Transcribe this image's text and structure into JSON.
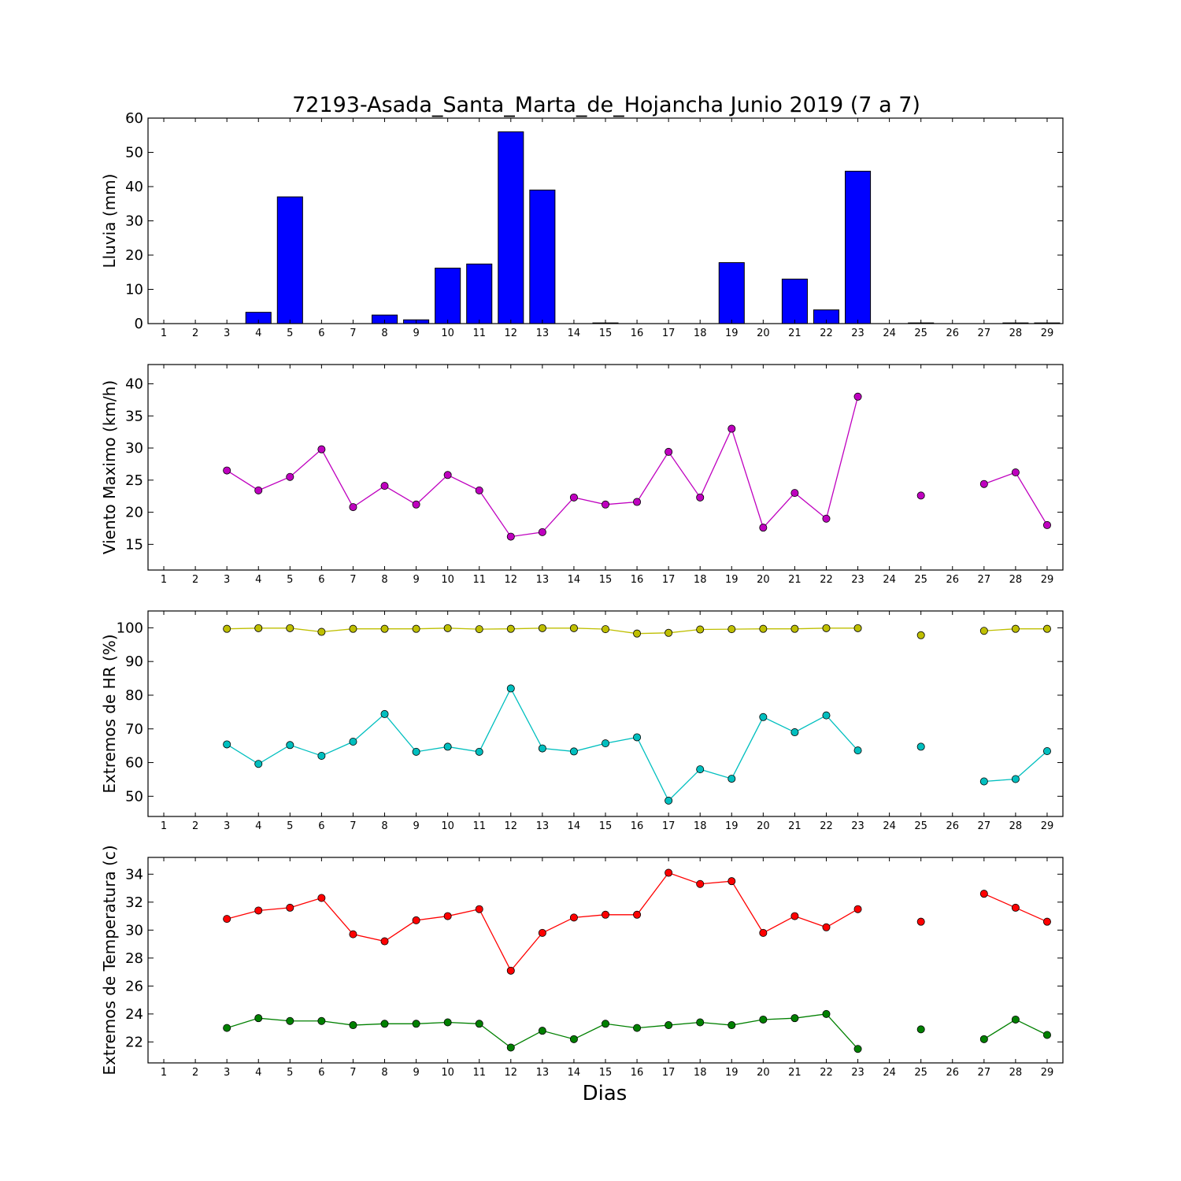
{
  "title": "72193-Asada_Santa_Marta_de_Hojancha Junio 2019  (7 a 7)",
  "xlabel": "Dias",
  "chart_data": [
    {
      "type": "bar",
      "ylabel": "Lluvia (mm)",
      "x": [
        1,
        2,
        3,
        4,
        5,
        6,
        7,
        8,
        9,
        10,
        11,
        12,
        13,
        14,
        15,
        16,
        17,
        18,
        19,
        20,
        21,
        22,
        23,
        24,
        25,
        26,
        27,
        28,
        29
      ],
      "ylim": [
        0,
        60
      ],
      "yticks": [
        0,
        10,
        20,
        30,
        40,
        50,
        60
      ],
      "color": "#0000ff",
      "values": [
        0,
        0,
        0,
        3.3,
        37,
        0,
        0,
        2.5,
        1.1,
        16.2,
        17.4,
        56,
        39,
        0,
        0.2,
        0,
        0,
        0,
        17.8,
        0,
        13,
        4,
        44.5,
        0,
        0.2,
        0,
        0,
        0.2,
        0.2
      ]
    },
    {
      "type": "line",
      "ylabel": "Viento Maximo (km/h)",
      "x": [
        1,
        2,
        3,
        4,
        5,
        6,
        7,
        8,
        9,
        10,
        11,
        12,
        13,
        14,
        15,
        16,
        17,
        18,
        19,
        20,
        21,
        22,
        23,
        24,
        25,
        26,
        27,
        28,
        29
      ],
      "ylim": [
        11,
        43
      ],
      "yticks": [
        15,
        20,
        25,
        30,
        35,
        40
      ],
      "series": [
        {
          "color": "#bf00bf",
          "values": [
            null,
            null,
            26.5,
            23.4,
            25.5,
            29.8,
            20.8,
            24.1,
            21.2,
            25.8,
            23.4,
            16.2,
            16.9,
            22.3,
            21.2,
            21.6,
            29.4,
            22.3,
            33.0,
            17.6,
            23.0,
            19.0,
            38.0,
            null,
            22.6,
            null,
            24.4,
            26.2,
            18.0
          ]
        }
      ]
    },
    {
      "type": "line",
      "ylabel": "Extremos de HR (%)",
      "x": [
        1,
        2,
        3,
        4,
        5,
        6,
        7,
        8,
        9,
        10,
        11,
        12,
        13,
        14,
        15,
        16,
        17,
        18,
        19,
        20,
        21,
        22,
        23,
        24,
        25,
        26,
        27,
        28,
        29
      ],
      "ylim": [
        44,
        105
      ],
      "yticks": [
        50,
        60,
        70,
        80,
        90,
        100
      ],
      "series": [
        {
          "color": "#bfbf00",
          "values": [
            null,
            null,
            99.7,
            99.9,
            99.9,
            98.8,
            99.7,
            99.7,
            99.7,
            99.9,
            99.6,
            99.7,
            99.9,
            99.9,
            99.6,
            98.3,
            98.5,
            99.5,
            99.6,
            99.7,
            99.7,
            99.9,
            99.9,
            null,
            97.8,
            null,
            99.1,
            99.7,
            99.7
          ]
        },
        {
          "color": "#00bfbf",
          "values": [
            null,
            null,
            65.4,
            59.6,
            65.2,
            62.0,
            66.2,
            74.4,
            63.2,
            64.7,
            63.2,
            82.0,
            64.2,
            63.3,
            65.7,
            67.5,
            48.7,
            58.0,
            55.2,
            73.5,
            69.0,
            74.0,
            63.6,
            null,
            64.7,
            null,
            54.4,
            55.1,
            63.4
          ]
        }
      ]
    },
    {
      "type": "line",
      "ylabel": "Extremos de Temperatura (c)",
      "x": [
        1,
        2,
        3,
        4,
        5,
        6,
        7,
        8,
        9,
        10,
        11,
        12,
        13,
        14,
        15,
        16,
        17,
        18,
        19,
        20,
        21,
        22,
        23,
        24,
        25,
        26,
        27,
        28,
        29
      ],
      "ylim": [
        20.5,
        35.2
      ],
      "yticks": [
        22,
        24,
        26,
        28,
        30,
        32,
        34
      ],
      "series": [
        {
          "color": "#ff0000",
          "values": [
            null,
            null,
            30.8,
            31.4,
            31.6,
            32.3,
            29.7,
            29.2,
            30.7,
            31.0,
            31.5,
            27.1,
            29.8,
            30.9,
            31.1,
            31.1,
            34.1,
            33.3,
            33.5,
            29.8,
            31.0,
            30.2,
            31.5,
            null,
            30.6,
            null,
            32.6,
            31.6,
            30.6
          ]
        },
        {
          "color": "#008000",
          "values": [
            null,
            null,
            23.0,
            23.7,
            23.5,
            23.5,
            23.2,
            23.3,
            23.3,
            23.4,
            23.3,
            21.6,
            22.8,
            22.2,
            23.3,
            23.0,
            23.2,
            23.4,
            23.2,
            23.6,
            23.7,
            24.0,
            21.5,
            null,
            22.9,
            null,
            22.2,
            23.6,
            22.5
          ]
        }
      ]
    }
  ]
}
